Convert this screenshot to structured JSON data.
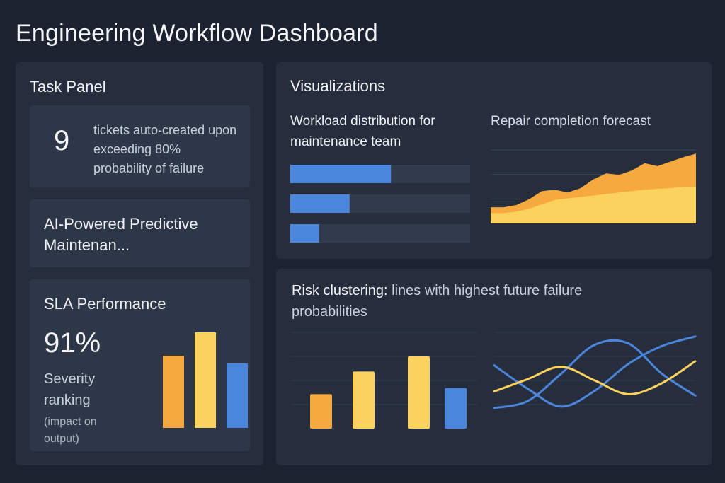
{
  "page": {
    "title": "Engineering Workflow Dashboard"
  },
  "task_panel": {
    "heading": "Task Panel",
    "ticket_count": "9",
    "ticket_description": "tickets auto-created upon exceeding 80% probability of failure",
    "module_title": "AI-Powered Predictive Maintenan...",
    "sla": {
      "heading": "SLA Performance",
      "value": "91%",
      "label": "Severity ranking",
      "sublabel": "(impact on output)"
    }
  },
  "visualizations": {
    "heading": "Visualizations",
    "workload_label": "Workload distribution for maintenance team",
    "forecast_label": "Repair completion forecast"
  },
  "risk": {
    "title_bold": "Risk clustering:",
    "title_rest": " lines with highest future failure probabilities"
  },
  "colors": {
    "orange": "#f5a93e",
    "yellow": "#fcd25e",
    "blue": "#4a86dc",
    "track": "#323b4c"
  },
  "chart_data": [
    {
      "type": "bar",
      "id": "sla-severity-bars",
      "categories": [
        "1",
        "2",
        "3"
      ],
      "values": [
        102,
        135,
        91
      ],
      "ylim": [
        0,
        140
      ],
      "colors": [
        "#f5a93e",
        "#fcd25e",
        "#4a86dc"
      ],
      "grid": false
    },
    {
      "type": "bar",
      "id": "workload-distribution",
      "orientation": "horizontal",
      "categories": [
        "1",
        "2",
        "3"
      ],
      "values": [
        0.56,
        0.33,
        0.16
      ],
      "xlim": [
        0,
        1
      ],
      "grid": false
    },
    {
      "type": "area",
      "id": "repair-forecast",
      "x": [
        0,
        1,
        2,
        3,
        4,
        5,
        6,
        7,
        8,
        9,
        10,
        11,
        12,
        13,
        14,
        15,
        16
      ],
      "series": [
        {
          "values": [
            22,
            22,
            25,
            33,
            44,
            46,
            42,
            48,
            60,
            68,
            66,
            72,
            82,
            78,
            84,
            90,
            95
          ]
        },
        {
          "values": [
            14,
            14,
            16,
            20,
            26,
            32,
            34,
            36,
            38,
            40,
            42,
            44,
            46,
            47,
            48,
            50,
            50
          ]
        }
      ],
      "ylim": [
        0,
        100
      ],
      "grid": true
    },
    {
      "type": "bar",
      "id": "risk-cluster-bars",
      "categories": [
        "1",
        "2",
        "3",
        "4"
      ],
      "values": [
        50,
        83,
        105,
        59
      ],
      "ylim": [
        0,
        140
      ],
      "colors": [
        "#f5a93e",
        "#fcd25e",
        "#fcd25e",
        "#4a86dc"
      ],
      "grid": true
    },
    {
      "type": "line",
      "id": "risk-cluster-lines",
      "x": [
        0,
        1,
        2,
        3,
        4,
        5,
        6
      ],
      "series": [
        {
          "color": "#4a86dc",
          "values": [
            92,
            58,
            32,
            55,
            94,
            120,
            134
          ]
        },
        {
          "color": "#4a86dc",
          "values": [
            30,
            40,
            80,
            122,
            124,
            80,
            48
          ]
        },
        {
          "color": "#fcd25e",
          "values": [
            54,
            72,
            90,
            70,
            50,
            66,
            98
          ]
        }
      ],
      "ylim": [
        0,
        140
      ],
      "grid": true
    }
  ]
}
